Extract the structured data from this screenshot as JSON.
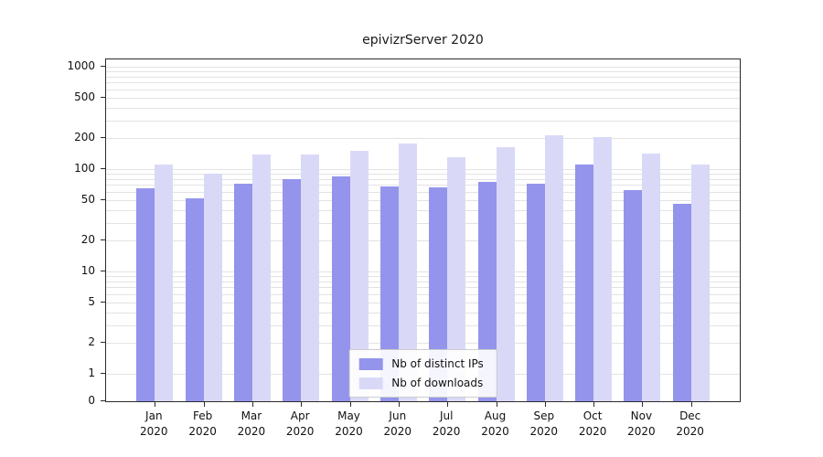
{
  "chart_data": {
    "type": "bar",
    "title": "epivizrServer 2020",
    "categories": [
      "Jan 2020",
      "Feb 2020",
      "Mar 2020",
      "Apr 2020",
      "May 2020",
      "Jun 2020",
      "Jul 2020",
      "Aug 2020",
      "Sep 2020",
      "Oct 2020",
      "Nov 2020",
      "Dec 2020"
    ],
    "series": [
      {
        "name": "Nb of distinct IPs",
        "color": "#9494ed",
        "values": [
          65,
          52,
          72,
          80,
          85,
          68,
          66,
          75,
          72,
          112,
          62,
          46
        ]
      },
      {
        "name": "Nb of downloads",
        "color": "#d9d9f7",
        "values": [
          110,
          90,
          140,
          140,
          150,
          178,
          130,
          165,
          215,
          205,
          143,
          112
        ]
      }
    ],
    "y_ticks": [
      0,
      1,
      2,
      5,
      10,
      20,
      50,
      100,
      200,
      500,
      1000
    ],
    "y_scale": "symlog",
    "ylim": [
      0,
      1000
    ],
    "xlabel": "",
    "ylabel": "",
    "grid": "horizontal-log-minor",
    "legend_position": "bottom-center"
  }
}
